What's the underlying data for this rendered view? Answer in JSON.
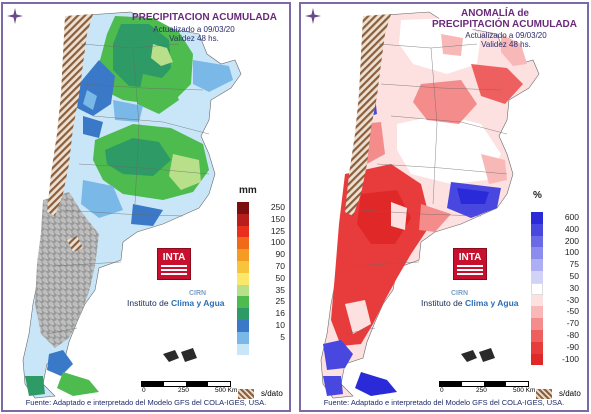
{
  "left_panel": {
    "title_line1": "PRECIPITACION ACUMULADA",
    "updated": "Actualizado a 09/03/20",
    "validity": "Validez 48 hs.",
    "legend_unit": "mm",
    "legend": [
      {
        "label": "250",
        "color": "#7a1010"
      },
      {
        "label": "150",
        "color": "#b81e1e"
      },
      {
        "label": "125",
        "color": "#e8301c"
      },
      {
        "label": "100",
        "color": "#f06a1a"
      },
      {
        "label": "90",
        "color": "#f59a22"
      },
      {
        "label": "70",
        "color": "#f8c43c"
      },
      {
        "label": "50",
        "color": "#fbe86a"
      },
      {
        "label": "35",
        "color": "#b8e08a"
      },
      {
        "label": "25",
        "color": "#4dbb4d"
      },
      {
        "label": "16",
        "color": "#2e9a66"
      },
      {
        "label": "10",
        "color": "#3a78c8"
      },
      {
        "label": "5",
        "color": "#7ab8e8"
      },
      {
        "label": "",
        "color": "#c8e6f8"
      }
    ],
    "logo_text": "INTA",
    "cirn": "CIRN",
    "institute_prefix": "Instituto de ",
    "institute_name": "Clima y Agua",
    "scale_labels": [
      "0",
      "250",
      "500 Km"
    ],
    "no_data_label": "s/dato",
    "source": "Fuente: Adaptado e interpretado del Modelo GFS del COLA-IGES, USA."
  },
  "right_panel": {
    "title_line1": "ANOMALÍA de",
    "title_line2": "PRECIPITACIÓN ACUMULADA",
    "updated": "Actualizado a 09/03/20",
    "validity": "Validez 48 hs.",
    "legend_unit": "%",
    "legend": [
      {
        "label": "600",
        "color": "#2a2ad8"
      },
      {
        "label": "400",
        "color": "#4848e0"
      },
      {
        "label": "200",
        "color": "#6a6ae6"
      },
      {
        "label": "100",
        "color": "#8c8cec"
      },
      {
        "label": "75",
        "color": "#aeaef2"
      },
      {
        "label": "50",
        "color": "#d2d2f8"
      },
      {
        "label": "30",
        "color": "#ffffff"
      },
      {
        "label": "-30",
        "color": "#fde0e0"
      },
      {
        "label": "-50",
        "color": "#f9b8b8"
      },
      {
        "label": "-70",
        "color": "#f48c8c"
      },
      {
        "label": "-80",
        "color": "#ee6060"
      },
      {
        "label": "-90",
        "color": "#e83c3c"
      },
      {
        "label": "-100",
        "color": "#e02828"
      }
    ],
    "logo_text": "INTA",
    "cirn": "CIRN",
    "institute_prefix": "Instituto de ",
    "institute_name": "Clima y Agua",
    "scale_labels": [
      "0",
      "250",
      "500 Km"
    ],
    "no_data_label": "s/dato",
    "source": "Fuente: Adaptado e interpretado del Modelo GFS del COLA-IGES, USA."
  }
}
